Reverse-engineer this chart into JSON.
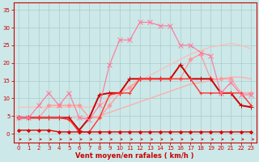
{
  "background_color": "#cce8e8",
  "grid_color": "#aacccc",
  "xlabel": "Vent moyen/en rafales ( km/h )",
  "x_values": [
    0,
    1,
    2,
    3,
    4,
    5,
    6,
    7,
    8,
    9,
    10,
    11,
    12,
    13,
    14,
    15,
    16,
    17,
    18,
    19,
    20,
    21,
    22,
    23
  ],
  "ylim": [
    -2.5,
    37
  ],
  "xlim": [
    -0.5,
    23.5
  ],
  "series": [
    {
      "color": "#ffaaaa",
      "linewidth": 0.9,
      "marker": null,
      "y": [
        4.5,
        4.5,
        4.5,
        4.5,
        4.5,
        4.5,
        4.5,
        4.5,
        5.0,
        6.0,
        7.0,
        8.0,
        9.0,
        10.0,
        11.0,
        12.0,
        13.0,
        14.0,
        14.5,
        15.0,
        15.5,
        16.0,
        16.0,
        15.5
      ]
    },
    {
      "color": "#ffbbbb",
      "linewidth": 0.9,
      "marker": null,
      "y": [
        7.5,
        7.5,
        7.5,
        7.5,
        7.5,
        7.5,
        7.5,
        7.5,
        8.0,
        10.0,
        12.0,
        13.5,
        15.0,
        16.5,
        18.0,
        19.5,
        21.0,
        22.5,
        23.5,
        24.5,
        25.0,
        25.5,
        25.0,
        24.0
      ]
    },
    {
      "color": "#ff9999",
      "linewidth": 0.9,
      "marker": "D",
      "markersize": 2.5,
      "y": [
        4.5,
        4.5,
        4.5,
        8.0,
        8.0,
        8.0,
        8.0,
        4.5,
        4.5,
        8.0,
        11.5,
        13.0,
        15.5,
        15.5,
        15.5,
        15.5,
        15.5,
        21.0,
        22.5,
        15.5,
        15.5,
        15.5,
        11.5,
        11.5
      ]
    },
    {
      "color": "#cc0000",
      "linewidth": 1.4,
      "marker": "+",
      "markersize": 4,
      "y": [
        4.5,
        4.5,
        4.5,
        4.5,
        4.5,
        4.5,
        1.0,
        4.5,
        11.0,
        11.5,
        11.5,
        15.5,
        15.5,
        15.5,
        15.5,
        15.5,
        19.5,
        15.5,
        15.5,
        15.5,
        11.5,
        11.5,
        8.0,
        7.5
      ]
    },
    {
      "color": "#ff3333",
      "linewidth": 1.0,
      "marker": "+",
      "markersize": 3,
      "y": [
        4.5,
        4.5,
        4.5,
        4.5,
        4.5,
        4.0,
        0.5,
        0.5,
        4.5,
        11.0,
        11.5,
        11.5,
        15.5,
        15.5,
        15.5,
        15.5,
        15.5,
        15.5,
        11.5,
        11.5,
        11.5,
        11.5,
        11.5,
        8.0
      ]
    },
    {
      "color": "#dd0000",
      "linewidth": 1.0,
      "marker": "D",
      "markersize": 2,
      "y": [
        1.0,
        1.0,
        1.0,
        1.0,
        0.5,
        0.5,
        0.5,
        0.5,
        0.5,
        0.5,
        0.5,
        0.5,
        0.5,
        0.5,
        0.5,
        0.5,
        0.5,
        0.5,
        0.5,
        0.5,
        0.5,
        0.5,
        0.5,
        0.5
      ]
    },
    {
      "color": "#ff7799",
      "linewidth": 0.8,
      "marker": "x",
      "markersize": 4,
      "y": [
        4.5,
        4.5,
        8.0,
        11.5,
        8.0,
        11.5,
        4.5,
        4.0,
        8.0,
        19.5,
        26.5,
        26.5,
        31.5,
        31.5,
        30.5,
        30.5,
        25.0,
        25.0,
        23.0,
        22.0,
        11.5,
        14.5,
        11.0,
        11.0
      ]
    }
  ],
  "yticks": [
    0,
    5,
    10,
    15,
    20,
    25,
    30,
    35
  ],
  "xticks": [
    0,
    1,
    2,
    3,
    4,
    5,
    6,
    7,
    8,
    9,
    10,
    11,
    12,
    13,
    14,
    15,
    16,
    17,
    18,
    19,
    20,
    21,
    22,
    23
  ]
}
